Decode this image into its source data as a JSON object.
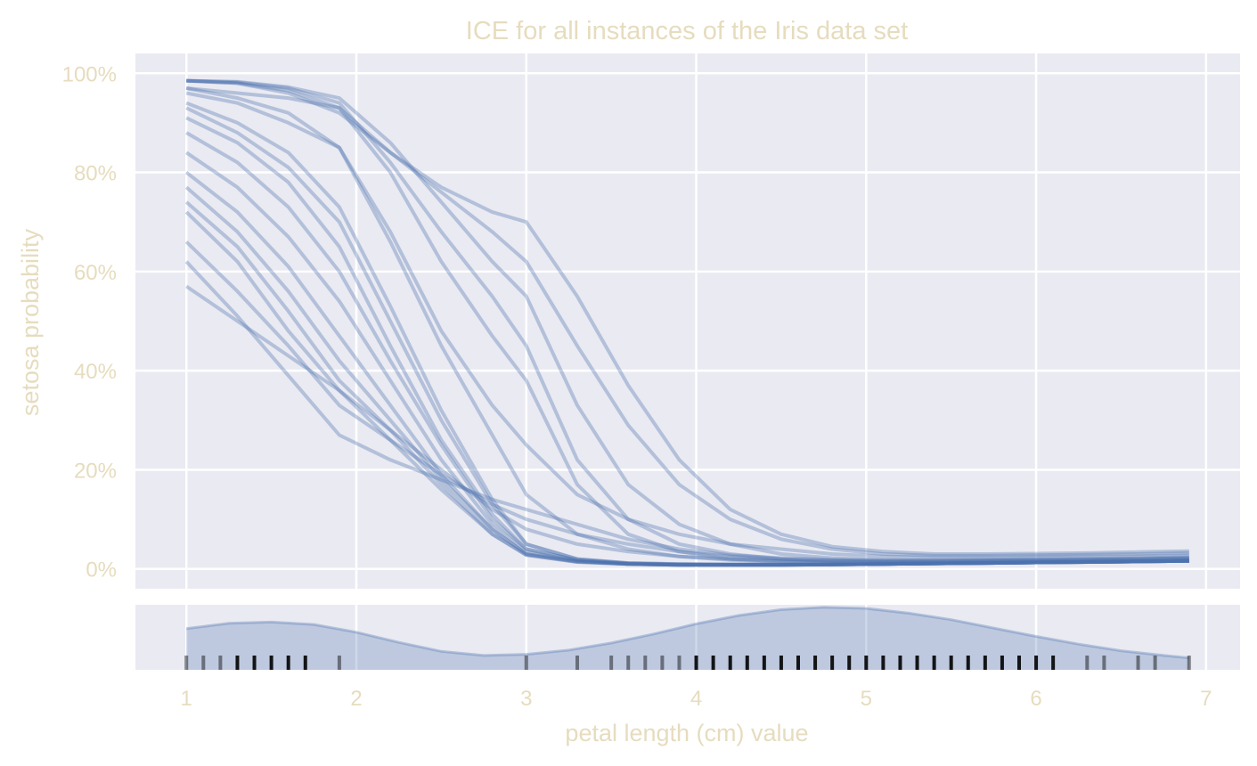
{
  "colors": {
    "panel_bg": "#eaeaf2",
    "grid": "#ffffff",
    "line": "#4c72b0",
    "text": "#e6dcbe",
    "rug": "#000000"
  },
  "chart_data": {
    "type": "line",
    "title": "ICE for all instances of the Iris data set",
    "xlabel": "petal length (cm) value",
    "ylabel": "setosa probability",
    "xlim": [
      0.7,
      7.2
    ],
    "ylim": [
      -0.04,
      1.04
    ],
    "x_ticks": [
      "1",
      "2",
      "3",
      "4",
      "5",
      "6",
      "7"
    ],
    "y_ticks": [
      "0%",
      "20%",
      "40%",
      "60%",
      "80%",
      "100%"
    ],
    "grid": true,
    "legend": "none",
    "x": [
      1.0,
      1.3,
      1.6,
      1.9,
      2.2,
      2.5,
      2.8,
      3.0,
      3.3,
      3.6,
      3.9,
      4.2,
      4.5,
      4.8,
      5.1,
      5.4,
      5.7,
      6.0,
      6.3,
      6.6,
      6.9
    ],
    "series_description": "Individual conditional expectation curves, one per instance (~150), drawn semi-transparent. Representative curves listed.",
    "series": [
      {
        "values": [
          0.985,
          0.982,
          0.97,
          0.94,
          0.82,
          0.68,
          0.55,
          0.45,
          0.22,
          0.1,
          0.05,
          0.03,
          0.02,
          0.016,
          0.014,
          0.014,
          0.015,
          0.016,
          0.017,
          0.018,
          0.02
        ]
      },
      {
        "values": [
          0.985,
          0.983,
          0.972,
          0.95,
          0.86,
          0.74,
          0.62,
          0.55,
          0.33,
          0.17,
          0.09,
          0.05,
          0.03,
          0.022,
          0.018,
          0.017,
          0.017,
          0.018,
          0.019,
          0.02,
          0.022
        ]
      },
      {
        "values": [
          0.985,
          0.98,
          0.965,
          0.93,
          0.8,
          0.62,
          0.47,
          0.38,
          0.17,
          0.07,
          0.035,
          0.02,
          0.015,
          0.012,
          0.011,
          0.011,
          0.012,
          0.013,
          0.014,
          0.015,
          0.016
        ]
      },
      {
        "values": [
          0.97,
          0.96,
          0.95,
          0.93,
          0.84,
          0.76,
          0.68,
          0.62,
          0.45,
          0.29,
          0.17,
          0.1,
          0.06,
          0.04,
          0.03,
          0.027,
          0.027,
          0.028,
          0.029,
          0.03,
          0.032
        ]
      },
      {
        "values": [
          0.985,
          0.98,
          0.96,
          0.92,
          0.84,
          0.77,
          0.72,
          0.7,
          0.55,
          0.37,
          0.22,
          0.12,
          0.07,
          0.045,
          0.035,
          0.03,
          0.03,
          0.031,
          0.032,
          0.034,
          0.036
        ]
      },
      {
        "values": [
          0.96,
          0.94,
          0.9,
          0.85,
          0.68,
          0.48,
          0.33,
          0.25,
          0.15,
          0.1,
          0.07,
          0.05,
          0.04,
          0.03,
          0.025,
          0.023,
          0.023,
          0.024,
          0.025,
          0.026,
          0.028
        ]
      },
      {
        "values": [
          0.93,
          0.88,
          0.81,
          0.7,
          0.5,
          0.3,
          0.13,
          0.05,
          0.02,
          0.012,
          0.01,
          0.009,
          0.009,
          0.009,
          0.01,
          0.011,
          0.012,
          0.013,
          0.014,
          0.015,
          0.016
        ]
      },
      {
        "values": [
          0.91,
          0.86,
          0.78,
          0.65,
          0.45,
          0.26,
          0.11,
          0.04,
          0.018,
          0.011,
          0.009,
          0.009,
          0.009,
          0.009,
          0.01,
          0.011,
          0.012,
          0.013,
          0.014,
          0.015,
          0.016
        ]
      },
      {
        "values": [
          0.88,
          0.82,
          0.73,
          0.6,
          0.42,
          0.25,
          0.1,
          0.04,
          0.018,
          0.011,
          0.009,
          0.009,
          0.009,
          0.009,
          0.01,
          0.011,
          0.012,
          0.013,
          0.014,
          0.015,
          0.016
        ]
      },
      {
        "values": [
          0.84,
          0.77,
          0.67,
          0.54,
          0.38,
          0.22,
          0.09,
          0.035,
          0.016,
          0.01,
          0.008,
          0.008,
          0.008,
          0.009,
          0.01,
          0.011,
          0.012,
          0.013,
          0.014,
          0.015,
          0.016
        ]
      },
      {
        "values": [
          0.8,
          0.72,
          0.61,
          0.47,
          0.33,
          0.19,
          0.08,
          0.03,
          0.015,
          0.01,
          0.008,
          0.008,
          0.008,
          0.009,
          0.01,
          0.011,
          0.012,
          0.013,
          0.014,
          0.015,
          0.016
        ]
      },
      {
        "values": [
          0.77,
          0.68,
          0.56,
          0.42,
          0.3,
          0.18,
          0.08,
          0.03,
          0.015,
          0.01,
          0.008,
          0.008,
          0.008,
          0.009,
          0.01,
          0.011,
          0.012,
          0.013,
          0.014,
          0.015,
          0.016
        ]
      },
      {
        "values": [
          0.74,
          0.65,
          0.52,
          0.38,
          0.28,
          0.17,
          0.07,
          0.028,
          0.014,
          0.01,
          0.008,
          0.008,
          0.008,
          0.009,
          0.01,
          0.011,
          0.012,
          0.013,
          0.014,
          0.015,
          0.016
        ]
      },
      {
        "values": [
          0.72,
          0.62,
          0.48,
          0.36,
          0.26,
          0.16,
          0.07,
          0.028,
          0.014,
          0.01,
          0.008,
          0.008,
          0.008,
          0.009,
          0.01,
          0.011,
          0.012,
          0.013,
          0.014,
          0.015,
          0.016
        ]
      },
      {
        "values": [
          0.66,
          0.56,
          0.45,
          0.33,
          0.26,
          0.19,
          0.13,
          0.1,
          0.07,
          0.05,
          0.035,
          0.025,
          0.02,
          0.017,
          0.016,
          0.016,
          0.017,
          0.018,
          0.019,
          0.02,
          0.022
        ]
      },
      {
        "values": [
          0.62,
          0.51,
          0.39,
          0.27,
          0.22,
          0.18,
          0.14,
          0.12,
          0.09,
          0.06,
          0.04,
          0.028,
          0.022,
          0.019,
          0.018,
          0.018,
          0.019,
          0.02,
          0.021,
          0.022,
          0.024
        ]
      },
      {
        "values": [
          0.57,
          0.5,
          0.43,
          0.36,
          0.28,
          0.2,
          0.12,
          0.08,
          0.05,
          0.035,
          0.025,
          0.02,
          0.017,
          0.015,
          0.015,
          0.015,
          0.016,
          0.017,
          0.018,
          0.019,
          0.02
        ]
      },
      {
        "values": [
          0.94,
          0.9,
          0.84,
          0.73,
          0.53,
          0.32,
          0.14,
          0.05,
          0.02,
          0.012,
          0.01,
          0.009,
          0.009,
          0.009,
          0.01,
          0.011,
          0.012,
          0.013,
          0.014,
          0.015,
          0.016
        ]
      },
      {
        "values": [
          0.97,
          0.95,
          0.92,
          0.85,
          0.66,
          0.45,
          0.27,
          0.15,
          0.07,
          0.04,
          0.025,
          0.018,
          0.015,
          0.013,
          0.012,
          0.012,
          0.013,
          0.014,
          0.015,
          0.016,
          0.017
        ]
      }
    ],
    "density_panel": {
      "type": "area",
      "description": "Kernel density of observed petal length with rug ticks at observed values",
      "x": [
        1.0,
        1.25,
        1.5,
        1.75,
        2.0,
        2.25,
        2.5,
        2.75,
        3.0,
        3.25,
        3.5,
        3.75,
        4.0,
        4.25,
        4.5,
        4.75,
        5.0,
        5.25,
        5.5,
        5.75,
        6.0,
        6.25,
        6.5,
        6.75,
        6.9
      ],
      "density": [
        0.63,
        0.72,
        0.74,
        0.7,
        0.57,
        0.4,
        0.25,
        0.18,
        0.2,
        0.27,
        0.39,
        0.54,
        0.71,
        0.85,
        0.95,
        0.99,
        0.97,
        0.89,
        0.78,
        0.64,
        0.5,
        0.37,
        0.26,
        0.18,
        0.14
      ],
      "rug": [
        1.0,
        1.1,
        1.2,
        1.3,
        1.4,
        1.5,
        1.6,
        1.7,
        1.9,
        3.0,
        3.3,
        3.5,
        3.6,
        3.7,
        3.8,
        3.9,
        4.0,
        4.1,
        4.2,
        4.3,
        4.4,
        4.5,
        4.6,
        4.7,
        4.8,
        4.9,
        5.0,
        5.1,
        5.2,
        5.3,
        5.4,
        5.5,
        5.6,
        5.7,
        5.8,
        5.9,
        6.0,
        6.1,
        6.3,
        6.4,
        6.6,
        6.7,
        6.9
      ]
    }
  }
}
